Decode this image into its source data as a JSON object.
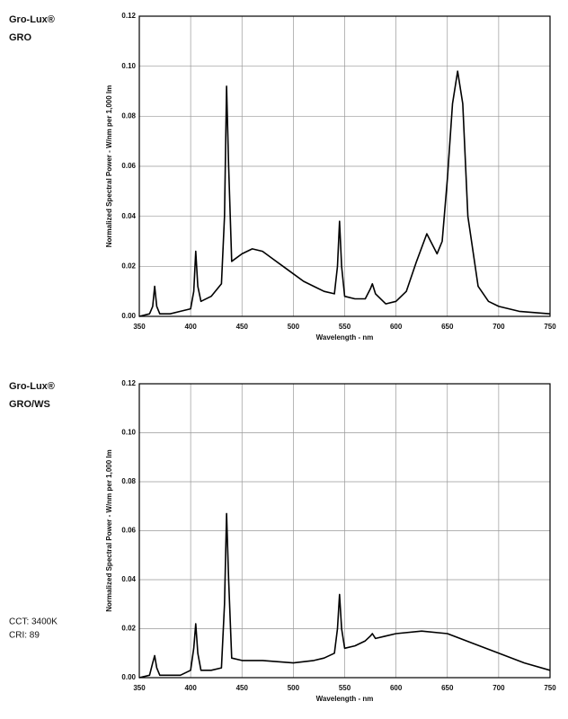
{
  "chart_data": [
    {
      "type": "line",
      "title": "Gro-Lux®",
      "subtitle": "GRO",
      "xlabel": "Wavelength - nm",
      "ylabel": "Normalized Spectral Power - W/nm per 1,000 lm",
      "x": [
        350,
        360,
        363,
        365,
        367,
        370,
        380,
        390,
        400,
        403,
        405,
        407,
        410,
        420,
        430,
        433,
        435,
        437,
        440,
        450,
        460,
        470,
        480,
        490,
        500,
        510,
        520,
        530,
        540,
        543,
        545,
        547,
        550,
        560,
        570,
        575,
        577,
        580,
        590,
        600,
        610,
        620,
        630,
        640,
        645,
        650,
        655,
        660,
        665,
        670,
        680,
        690,
        700,
        720,
        750
      ],
      "values": [
        0.0,
        0.001,
        0.004,
        0.012,
        0.004,
        0.001,
        0.001,
        0.002,
        0.003,
        0.01,
        0.026,
        0.012,
        0.006,
        0.008,
        0.013,
        0.04,
        0.092,
        0.06,
        0.022,
        0.025,
        0.027,
        0.026,
        0.023,
        0.02,
        0.017,
        0.014,
        0.012,
        0.01,
        0.009,
        0.02,
        0.038,
        0.02,
        0.008,
        0.007,
        0.007,
        0.011,
        0.013,
        0.009,
        0.005,
        0.006,
        0.01,
        0.022,
        0.033,
        0.025,
        0.03,
        0.055,
        0.085,
        0.098,
        0.085,
        0.04,
        0.012,
        0.006,
        0.004,
        0.002,
        0.001
      ],
      "color": "#000000",
      "xlim": [
        350,
        750
      ],
      "xticks": [
        350,
        400,
        450,
        500,
        550,
        600,
        650,
        700,
        750
      ],
      "ylim": [
        0,
        0.12
      ],
      "yticks": [
        {
          "value": 0,
          "label": "0.00"
        },
        {
          "value": 0.02,
          "label": "0.02"
        },
        {
          "value": 0.04,
          "label": "0.04"
        },
        {
          "value": 0.06,
          "label": "0.06"
        },
        {
          "value": 0.08,
          "label": "0.08"
        },
        {
          "value": 0.1,
          "label": "0.10"
        },
        {
          "value": 0.12,
          "label": "0.12"
        }
      ],
      "grid": true
    },
    {
      "type": "line",
      "title": "Gro-Lux®",
      "subtitle": "GRO/WS",
      "annotations": [
        "CCT: 3400K",
        "CRI: 89"
      ],
      "xlabel": "Wavelength - nm",
      "ylabel": "Normalized Spectral Power - W/nm per 1,000 lm",
      "x": [
        350,
        360,
        363,
        365,
        367,
        370,
        380,
        390,
        400,
        403,
        405,
        407,
        410,
        420,
        430,
        433,
        435,
        437,
        440,
        450,
        470,
        500,
        520,
        530,
        540,
        543,
        545,
        547,
        550,
        560,
        570,
        575,
        577,
        580,
        590,
        600,
        625,
        650,
        675,
        700,
        725,
        750
      ],
      "values": [
        0.0,
        0.001,
        0.006,
        0.009,
        0.004,
        0.001,
        0.001,
        0.001,
        0.003,
        0.012,
        0.022,
        0.01,
        0.003,
        0.003,
        0.004,
        0.03,
        0.067,
        0.04,
        0.008,
        0.007,
        0.007,
        0.006,
        0.007,
        0.008,
        0.01,
        0.02,
        0.034,
        0.02,
        0.012,
        0.013,
        0.015,
        0.017,
        0.018,
        0.016,
        0.017,
        0.018,
        0.019,
        0.018,
        0.014,
        0.01,
        0.006,
        0.003
      ],
      "color": "#000000",
      "xlim": [
        350,
        750
      ],
      "xticks": [
        350,
        400,
        450,
        500,
        550,
        600,
        650,
        700,
        750
      ],
      "ylim": [
        0,
        0.12
      ],
      "yticks": [
        {
          "value": 0,
          "label": "0.00"
        },
        {
          "value": 0.02,
          "label": "0.02"
        },
        {
          "value": 0.04,
          "label": "0.04"
        },
        {
          "value": 0.06,
          "label": "0.06"
        },
        {
          "value": 0.08,
          "label": "0.08"
        },
        {
          "value": 0.1,
          "label": "0.10"
        },
        {
          "value": 0.12,
          "label": "0.12"
        }
      ],
      "grid": true
    }
  ]
}
